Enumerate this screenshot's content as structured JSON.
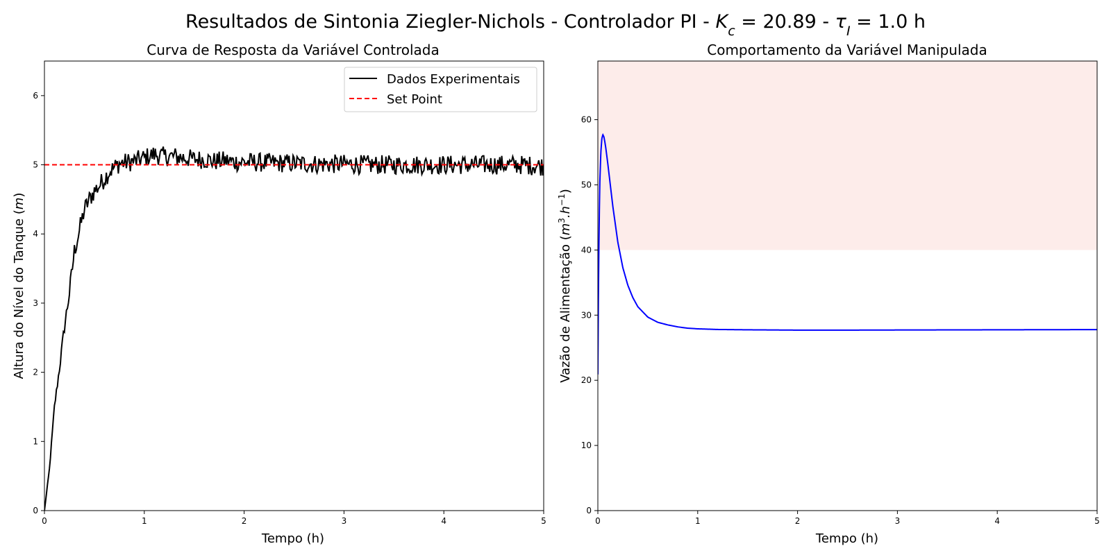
{
  "figure": {
    "title_parts": {
      "prefix": "Resultados de Sintonia Ziegler-Nichols - Controlador PI - ",
      "kc_symbol": "K",
      "kc_sub": "c",
      "kc_value": " = 20.89 - ",
      "tau_symbol": "τ",
      "tau_sub": "I",
      "tau_value": " = 1.0 h"
    }
  },
  "chart_data": [
    {
      "id": "left",
      "type": "line",
      "title": "Curva de Resposta da Variável Controlada",
      "xlabel": "Tempo (h)",
      "ylabel_parts": {
        "text": "Altura do Nível do Tanque (",
        "unit": "m",
        "close": ")"
      },
      "xlim": [
        0,
        5
      ],
      "ylim": [
        0,
        6.5
      ],
      "xticks": [
        0,
        1,
        2,
        3,
        4,
        5
      ],
      "yticks": [
        0,
        1,
        2,
        3,
        4,
        5,
        6
      ],
      "grid": false,
      "legend": {
        "placement": "top-right",
        "entries": [
          "Dados Experimentais",
          "Set Point"
        ]
      },
      "series": [
        {
          "name": "Dados Experimentais",
          "color": "#000000",
          "style": "solid",
          "x": [
            0,
            0.05,
            0.1,
            0.15,
            0.2,
            0.25,
            0.3,
            0.35,
            0.4,
            0.45,
            0.5,
            0.55,
            0.6,
            0.65,
            0.7,
            0.75,
            0.8,
            0.9,
            1.0,
            1.1,
            1.2,
            1.3,
            1.4,
            1.5,
            1.6,
            1.7,
            1.8,
            1.9,
            2.0,
            2.25,
            2.5,
            2.75,
            3.0,
            3.25,
            3.5,
            3.75,
            4.0,
            4.25,
            4.5,
            4.75,
            5.0
          ],
          "y": [
            0,
            0.6,
            1.5,
            2.05,
            2.65,
            3.15,
            3.75,
            4.05,
            4.35,
            4.5,
            4.62,
            4.7,
            4.8,
            4.9,
            4.96,
            5.02,
            5.03,
            5.05,
            5.1,
            5.15,
            5.12,
            5.12,
            5.1,
            5.08,
            5.08,
            5.05,
            5.06,
            5.04,
            5.04,
            5.03,
            5.02,
            5.01,
            5.01,
            5.0,
            5.0,
            5.0,
            5.0,
            5.0,
            5.0,
            5.0,
            4.98
          ],
          "noise_amplitude": 0.14
        },
        {
          "name": "Set Point",
          "color": "#ff0000",
          "style": "dashed",
          "x": [
            0,
            5
          ],
          "y": [
            5,
            5
          ]
        }
      ]
    },
    {
      "id": "right",
      "type": "line",
      "title": "Comportamento da Variável Manipulada",
      "xlabel": "Tempo (h)",
      "ylabel_parts": {
        "text": "Vazão de Alimentação (",
        "unit": "m",
        "unit_sup": "3",
        "unit2": ".h",
        "unit2_sup": "−1",
        "close": ")"
      },
      "xlim": [
        0,
        5
      ],
      "ylim": [
        0,
        69
      ],
      "xticks": [
        0,
        1,
        2,
        3,
        4,
        5
      ],
      "yticks": [
        0,
        10,
        20,
        30,
        40,
        50,
        60
      ],
      "grid": false,
      "shaded_band": {
        "y_from": 40,
        "y_to": 69,
        "color": "#fdecea"
      },
      "series": [
        {
          "color": "#0000ff",
          "style": "solid",
          "x": [
            0,
            0.005,
            0.01,
            0.015,
            0.02,
            0.03,
            0.04,
            0.05,
            0.06,
            0.07,
            0.08,
            0.1,
            0.12,
            0.15,
            0.2,
            0.25,
            0.3,
            0.35,
            0.4,
            0.5,
            0.6,
            0.7,
            0.8,
            0.9,
            1.0,
            1.2,
            1.5,
            2.0,
            2.5,
            3.0,
            4.0,
            5.0
          ],
          "y": [
            20.9,
            32,
            40,
            46,
            50.5,
            55,
            57.1,
            57.7,
            57.4,
            56.6,
            55.6,
            53.2,
            50.6,
            46.7,
            41.2,
            37.3,
            34.6,
            32.7,
            31.3,
            29.7,
            28.9,
            28.5,
            28.2,
            28.0,
            27.9,
            27.8,
            27.75,
            27.7,
            27.7,
            27.72,
            27.75,
            27.78
          ]
        }
      ]
    }
  ]
}
